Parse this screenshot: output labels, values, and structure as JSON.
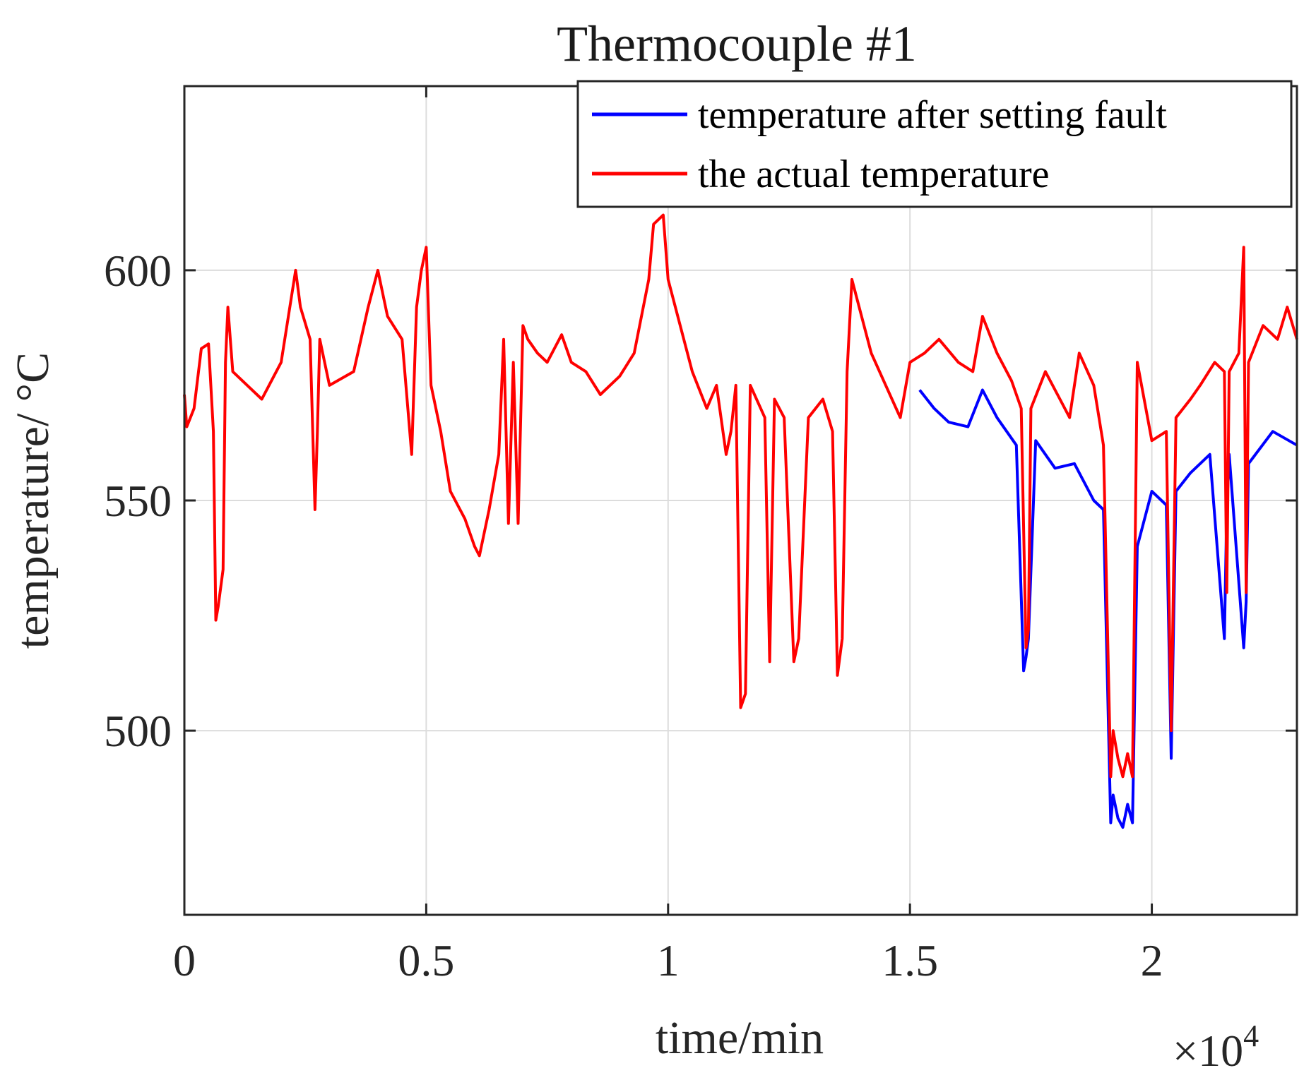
{
  "chart_data": {
    "type": "line",
    "title": "Thermocouple #1",
    "xlabel": "time/min",
    "ylabel": "temperature/ °C",
    "x_exponent_label": "×10",
    "x_exponent_power": "4",
    "xlim": [
      0,
      2.3
    ],
    "ylim": [
      460,
      640
    ],
    "x_ticks": [
      0,
      0.5,
      1,
      1.5,
      2
    ],
    "x_tick_labels": [
      "0",
      "0.5",
      "1",
      "1.5",
      "2"
    ],
    "y_ticks": [
      500,
      550,
      600
    ],
    "y_tick_labels": [
      "500",
      "550",
      "600"
    ],
    "grid": true,
    "legend_position": "top-right",
    "series": [
      {
        "name": "temperature after setting fault",
        "color": "#0000ff",
        "x": [
          1.52,
          1.55,
          1.58,
          1.62,
          1.65,
          1.68,
          1.72,
          1.735,
          1.74,
          1.745,
          1.76,
          1.8,
          1.84,
          1.88,
          1.9,
          1.915,
          1.92,
          1.93,
          1.94,
          1.95,
          1.96,
          1.97,
          2.0,
          2.03,
          2.04,
          2.05,
          2.08,
          2.12,
          2.15,
          2.155,
          2.16,
          2.19,
          2.195,
          2.2,
          2.25,
          2.3
        ],
        "y": [
          574,
          570,
          567,
          566,
          574,
          568,
          562,
          513,
          516,
          520,
          563,
          557,
          558,
          550,
          548,
          480,
          486,
          481,
          479,
          484,
          480,
          540,
          552,
          549,
          494,
          552,
          556,
          560,
          520,
          548,
          560,
          518,
          528,
          558,
          565,
          562
        ]
      },
      {
        "name": "the actual temperature",
        "color": "#ff0000",
        "x": [
          0,
          0.005,
          0.02,
          0.035,
          0.05,
          0.06,
          0.065,
          0.07,
          0.08,
          0.085,
          0.09,
          0.1,
          0.13,
          0.16,
          0.2,
          0.23,
          0.24,
          0.26,
          0.27,
          0.275,
          0.28,
          0.3,
          0.35,
          0.38,
          0.4,
          0.42,
          0.45,
          0.47,
          0.48,
          0.49,
          0.5,
          0.51,
          0.53,
          0.55,
          0.58,
          0.6,
          0.61,
          0.63,
          0.65,
          0.66,
          0.67,
          0.68,
          0.69,
          0.7,
          0.71,
          0.73,
          0.75,
          0.78,
          0.8,
          0.83,
          0.86,
          0.9,
          0.93,
          0.96,
          0.97,
          0.99,
          1.0,
          1.02,
          1.05,
          1.08,
          1.1,
          1.12,
          1.13,
          1.14,
          1.15,
          1.16,
          1.17,
          1.2,
          1.21,
          1.22,
          1.24,
          1.26,
          1.27,
          1.29,
          1.32,
          1.34,
          1.35,
          1.36,
          1.37,
          1.38,
          1.4,
          1.42,
          1.45,
          1.48,
          1.5,
          1.53,
          1.56,
          1.6,
          1.63,
          1.65,
          1.68,
          1.71,
          1.73,
          1.74,
          1.745,
          1.75,
          1.78,
          1.81,
          1.83,
          1.85,
          1.88,
          1.9,
          1.915,
          1.92,
          1.93,
          1.94,
          1.95,
          1.96,
          1.97,
          2.0,
          2.03,
          2.04,
          2.05,
          2.08,
          2.1,
          2.13,
          2.15,
          2.155,
          2.16,
          2.18,
          2.19,
          2.195,
          2.2,
          2.23,
          2.26,
          2.28,
          2.3
        ],
        "y": [
          573,
          566,
          570,
          583,
          584,
          565,
          524,
          527,
          535,
          580,
          592,
          578,
          575,
          572,
          580,
          600,
          592,
          585,
          548,
          565,
          585,
          575,
          578,
          592,
          600,
          590,
          585,
          560,
          592,
          600,
          605,
          575,
          565,
          552,
          546,
          540,
          538,
          548,
          560,
          585,
          545,
          580,
          545,
          588,
          585,
          582,
          580,
          586,
          580,
          578,
          573,
          577,
          582,
          598,
          610,
          612,
          598,
          590,
          578,
          570,
          575,
          560,
          565,
          575,
          505,
          508,
          575,
          568,
          515,
          572,
          568,
          515,
          520,
          568,
          572,
          565,
          512,
          520,
          578,
          598,
          590,
          582,
          575,
          568,
          580,
          582,
          585,
          580,
          578,
          590,
          582,
          576,
          570,
          518,
          522,
          570,
          578,
          572,
          568,
          582,
          575,
          562,
          490,
          500,
          494,
          490,
          495,
          490,
          580,
          563,
          565,
          500,
          568,
          572,
          575,
          580,
          578,
          530,
          578,
          582,
          605,
          530,
          580,
          588,
          585,
          592,
          585
        ]
      }
    ]
  }
}
